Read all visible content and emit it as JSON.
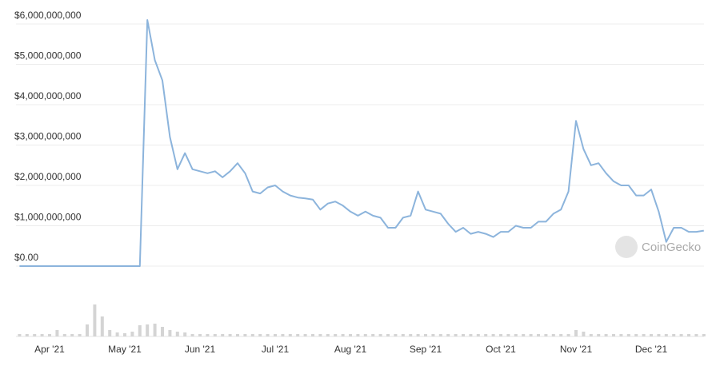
{
  "chart_data": [
    {
      "type": "line",
      "color": "#8cb4dc",
      "grid": true,
      "annotation": "CoinGecko",
      "categories": [
        null,
        null,
        null,
        null,
        "Apr '21",
        null,
        null,
        null,
        null,
        null,
        null,
        null,
        null,
        null,
        "May '21",
        null,
        null,
        null,
        null,
        null,
        null,
        null,
        null,
        null,
        "Jun '21",
        null,
        null,
        null,
        null,
        null,
        null,
        null,
        null,
        null,
        "Jul '21",
        null,
        null,
        null,
        null,
        null,
        null,
        null,
        null,
        null,
        "Aug '21",
        null,
        null,
        null,
        null,
        null,
        null,
        null,
        null,
        null,
        "Sep '21",
        null,
        null,
        null,
        null,
        null,
        null,
        null,
        null,
        null,
        "Oct '21",
        null,
        null,
        null,
        null,
        null,
        null,
        null,
        null,
        null,
        "Nov '21",
        null,
        null,
        null,
        null,
        null,
        null,
        null,
        null,
        null,
        "Dec '21",
        null,
        null,
        null,
        null,
        null,
        null,
        null
      ],
      "values": [
        0,
        0,
        0,
        0,
        0,
        0,
        0,
        0,
        0,
        0,
        0,
        0,
        0,
        0,
        0,
        0,
        0,
        6100000000,
        5100000000,
        4600000000,
        3200000000,
        2400000000,
        2800000000,
        2400000000,
        2350000000,
        2300000000,
        2350000000,
        2200000000,
        2350000000,
        2550000000,
        2300000000,
        1850000000,
        1800000000,
        1950000000,
        2000000000,
        1850000000,
        1750000000,
        1700000000,
        1680000000,
        1650000000,
        1400000000,
        1550000000,
        1600000000,
        1500000000,
        1350000000,
        1250000000,
        1350000000,
        1250000000,
        1200000000,
        950000000,
        950000000,
        1200000000,
        1250000000,
        1850000000,
        1400000000,
        1350000000,
        1300000000,
        1050000000,
        850000000,
        950000000,
        800000000,
        850000000,
        800000000,
        720000000,
        850000000,
        850000000,
        1000000000,
        950000000,
        950000000,
        1100000000,
        1100000000,
        1300000000,
        1400000000,
        1850000000,
        3600000000,
        2900000000,
        2500000000,
        2550000000,
        2300000000,
        2100000000,
        2000000000,
        2000000000,
        1750000000,
        1750000000,
        1900000000,
        1350000000,
        600000000,
        950000000,
        950000000,
        850000000,
        850000000,
        880000000
      ],
      "ylim": [
        0,
        6000000000
      ],
      "yticks": [
        {
          "value": 0,
          "label": "$0.00"
        },
        {
          "value": 1000000000,
          "label": "$1,000,000,000"
        },
        {
          "value": 2000000000,
          "label": "$2,000,000,000"
        },
        {
          "value": 3000000000,
          "label": "$3,000,000,000"
        },
        {
          "value": 4000000000,
          "label": "$4,000,000,000"
        },
        {
          "value": 5000000000,
          "label": "$5,000,000,000"
        },
        {
          "value": 6000000000,
          "label": "$6,000,000,000"
        }
      ]
    },
    {
      "type": "bar",
      "color": "#d4d4d4",
      "ylim": [
        0,
        50
      ],
      "values": [
        3,
        3,
        3,
        3,
        3,
        8,
        3,
        3,
        3,
        15,
        40,
        25,
        8,
        5,
        4,
        6,
        14,
        15,
        16,
        12,
        8,
        6,
        5,
        3,
        3,
        3,
        3,
        3,
        3,
        3,
        3,
        3,
        3,
        3,
        3,
        3,
        3,
        3,
        3,
        3,
        3,
        3,
        3,
        3,
        3,
        3,
        3,
        3,
        3,
        3,
        3,
        3,
        3,
        3,
        3,
        3,
        3,
        3,
        3,
        3,
        3,
        3,
        3,
        3,
        3,
        3,
        3,
        3,
        3,
        3,
        3,
        3,
        3,
        3,
        8,
        6,
        3,
        3,
        3,
        3,
        3,
        3,
        3,
        3,
        3,
        3,
        3,
        3,
        3,
        3,
        3,
        3
      ]
    }
  ]
}
